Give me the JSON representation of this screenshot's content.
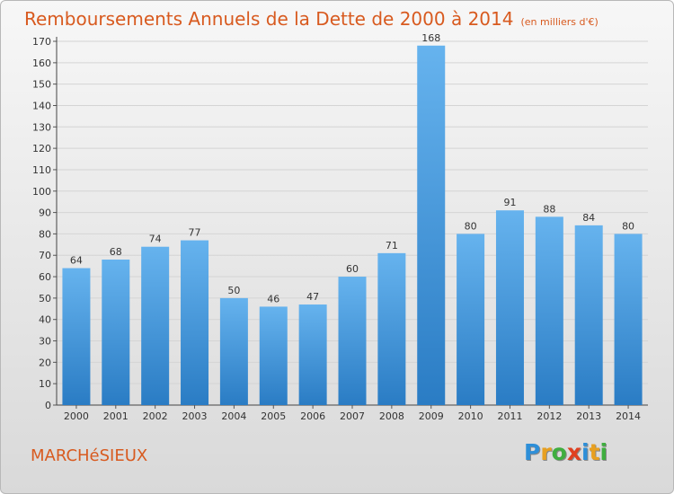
{
  "header": {
    "title": "Remboursements Annuels de la Dette de 2000 à 2014",
    "unit": "(en milliers d'€)"
  },
  "footer": {
    "town": "MARCHéSIEUX",
    "logo_letters": [
      {
        "ch": "P",
        "color": "#2e8fd8"
      },
      {
        "ch": "r",
        "color": "#e8a020"
      },
      {
        "ch": "o",
        "color": "#3fae3f"
      },
      {
        "ch": "x",
        "color": "#e04020"
      },
      {
        "ch": "i",
        "color": "#2e8fd8"
      },
      {
        "ch": "t",
        "color": "#e8a020"
      },
      {
        "ch": "i",
        "color": "#3fae3f"
      }
    ]
  },
  "chart_data": {
    "type": "bar",
    "categories": [
      "2000",
      "2001",
      "2002",
      "2003",
      "2004",
      "2005",
      "2006",
      "2007",
      "2008",
      "2009",
      "2010",
      "2011",
      "2012",
      "2013",
      "2014"
    ],
    "values": [
      64,
      68,
      74,
      77,
      50,
      46,
      47,
      60,
      71,
      168,
      80,
      91,
      88,
      84,
      80
    ],
    "ylim": [
      0,
      170
    ],
    "ytick_step": 10,
    "grid": true,
    "bar_color_light": "#66b3ee",
    "bar_color_dark": "#2a7cc4",
    "grid_color": "#d4d4d4",
    "text_color": "#333333"
  }
}
